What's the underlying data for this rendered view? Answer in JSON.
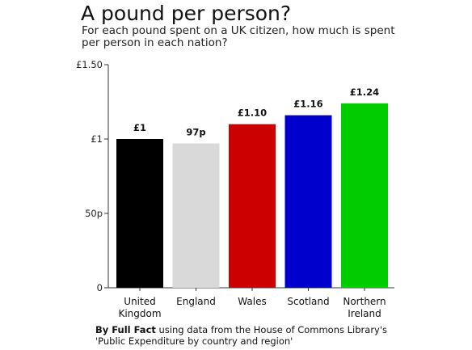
{
  "title": "A pound per person?",
  "subtitle": "For each pound spent on a UK citizen, how much is spent per person in each nation?",
  "source": {
    "bold": "By Full Fact",
    "text_line1": " using data from the House of Commons Library's",
    "text_line2": "'Public Expenditure by country and region'"
  },
  "chart_data": {
    "type": "bar",
    "title": "A pound per person?",
    "subtitle": "For each pound spent on a UK citizen, how much is spent per person in each nation?",
    "xlabel": "",
    "ylabel": "",
    "ylim": [
      0,
      1.5
    ],
    "yticks": [
      {
        "value": 0,
        "label": "0"
      },
      {
        "value": 0.5,
        "label": "50p"
      },
      {
        "value": 1,
        "label": "£1"
      },
      {
        "value": 1.5,
        "label": "£1.50"
      }
    ],
    "grid": false,
    "categories": [
      [
        "United",
        "Kingdom"
      ],
      [
        "England"
      ],
      [
        "Wales"
      ],
      [
        "Scotland"
      ],
      [
        "Northern",
        "Ireland"
      ]
    ],
    "values": [
      1.0,
      0.97,
      1.1,
      1.16,
      1.24
    ],
    "data_labels": [
      "£1",
      "97p",
      "£1.10",
      "£1.16",
      "£1.24"
    ],
    "colors": [
      "#000000",
      "#d9d9d9",
      "#cc0000",
      "#0000cc",
      "#00cc00"
    ]
  }
}
